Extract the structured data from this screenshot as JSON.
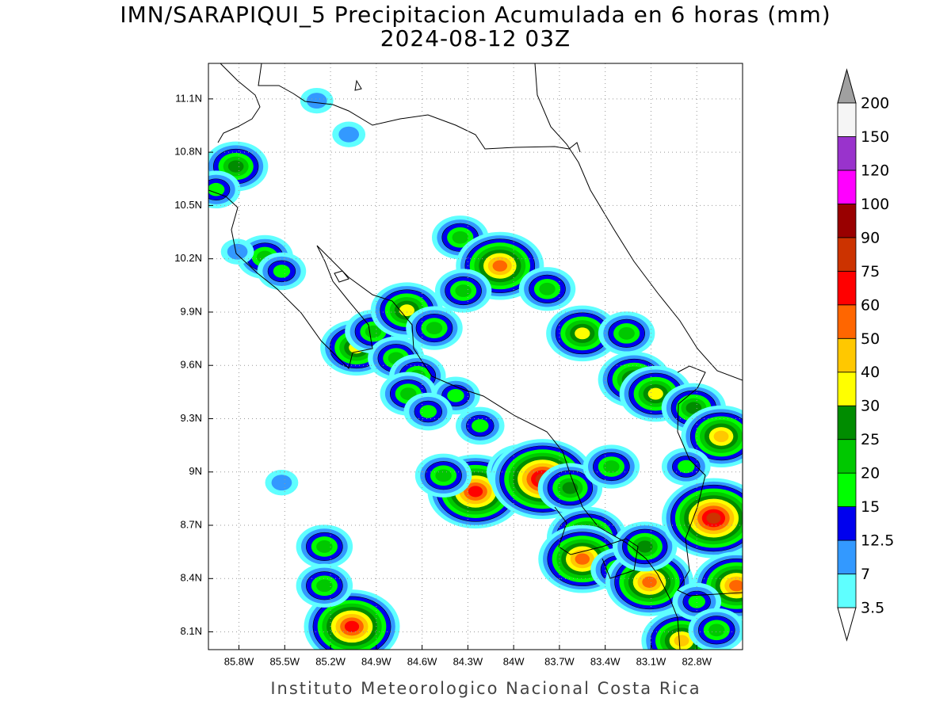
{
  "chart_data": {
    "type": "contour_map",
    "title": "IMN/SARAPIQUI_5 Precipitacion Acumulada en 6 horas (mm)",
    "subtitle": "2024-08-12 03Z",
    "footer": "Instituto Meteorologico Nacional Costa Rica",
    "xlim": [
      -86.0,
      -82.5
    ],
    "ylim": [
      8.0,
      11.3
    ],
    "xticks": [
      {
        "value": -85.8,
        "label": "85.8W"
      },
      {
        "value": -85.5,
        "label": "85.5W"
      },
      {
        "value": -85.2,
        "label": "85.2W"
      },
      {
        "value": -84.9,
        "label": "84.9W"
      },
      {
        "value": -84.6,
        "label": "84.6W"
      },
      {
        "value": -84.3,
        "label": "84.3W"
      },
      {
        "value": -84.0,
        "label": "84W"
      },
      {
        "value": -83.7,
        "label": "83.7W"
      },
      {
        "value": -83.4,
        "label": "83.4W"
      },
      {
        "value": -83.1,
        "label": "83.1W"
      },
      {
        "value": -82.8,
        "label": "82.8W"
      }
    ],
    "yticks": [
      {
        "value": 8.1,
        "label": "8.1N"
      },
      {
        "value": 8.4,
        "label": "8.4N"
      },
      {
        "value": 8.7,
        "label": "8.7N"
      },
      {
        "value": 9.0,
        "label": "9N"
      },
      {
        "value": 9.3,
        "label": "9.3N"
      },
      {
        "value": 9.6,
        "label": "9.6N"
      },
      {
        "value": 9.9,
        "label": "9.9N"
      },
      {
        "value": 10.2,
        "label": "10.2N"
      },
      {
        "value": 10.5,
        "label": "10.5N"
      },
      {
        "value": 10.8,
        "label": "10.8N"
      },
      {
        "value": 11.1,
        "label": "11.1N"
      }
    ],
    "grid": true,
    "colorbar": {
      "levels": [
        3.5,
        7,
        12.5,
        15,
        20,
        25,
        30,
        40,
        50,
        60,
        75,
        90,
        100,
        120,
        150,
        200
      ],
      "colors": [
        "#5fffff",
        "#3399ff",
        "#0000ee",
        "#00ff00",
        "#00c800",
        "#008c00",
        "#ffff00",
        "#ffc800",
        "#ff6600",
        "#ff0000",
        "#cc3300",
        "#990000",
        "#ff00ff",
        "#9933cc",
        "#f5f5f5"
      ],
      "under_color": "#ffffff",
      "over_color": "#a0a0a0"
    },
    "cells": [
      {
        "lon": -85.82,
        "lat": 10.72,
        "value": 25
      },
      {
        "lon": -85.95,
        "lat": 10.59,
        "value": 15
      },
      {
        "lon": -85.29,
        "lat": 11.09,
        "value": 10
      },
      {
        "lon": -85.08,
        "lat": 10.9,
        "value": 7
      },
      {
        "lon": -85.63,
        "lat": 10.21,
        "value": 20
      },
      {
        "lon": -85.52,
        "lat": 10.13,
        "value": 15
      },
      {
        "lon": -85.81,
        "lat": 10.24,
        "value": 7
      },
      {
        "lon": -85.03,
        "lat": 9.7,
        "value": 35
      },
      {
        "lon": -84.92,
        "lat": 9.79,
        "value": 20
      },
      {
        "lon": -84.7,
        "lat": 9.91,
        "value": 35
      },
      {
        "lon": -84.77,
        "lat": 9.64,
        "value": 20
      },
      {
        "lon": -84.63,
        "lat": 9.54,
        "value": 20
      },
      {
        "lon": -84.69,
        "lat": 9.44,
        "value": 20
      },
      {
        "lon": -84.52,
        "lat": 9.81,
        "value": 20
      },
      {
        "lon": -84.38,
        "lat": 9.43,
        "value": 15
      },
      {
        "lon": -84.56,
        "lat": 9.34,
        "value": 15
      },
      {
        "lon": -84.22,
        "lat": 9.26,
        "value": 15
      },
      {
        "lon": -84.35,
        "lat": 10.32,
        "value": 20
      },
      {
        "lon": -84.09,
        "lat": 10.16,
        "value": 55
      },
      {
        "lon": -84.33,
        "lat": 10.02,
        "value": 20
      },
      {
        "lon": -83.78,
        "lat": 10.03,
        "value": 20
      },
      {
        "lon": -83.55,
        "lat": 9.78,
        "value": 35
      },
      {
        "lon": -83.26,
        "lat": 9.78,
        "value": 20
      },
      {
        "lon": -83.21,
        "lat": 9.52,
        "value": 30
      },
      {
        "lon": -83.07,
        "lat": 9.44,
        "value": 30
      },
      {
        "lon": -84.25,
        "lat": 8.89,
        "value": 65
      },
      {
        "lon": -84.46,
        "lat": 8.98,
        "value": 20
      },
      {
        "lon": -83.94,
        "lat": 9.0,
        "value": 35
      },
      {
        "lon": -83.81,
        "lat": 8.96,
        "value": 80
      },
      {
        "lon": -83.63,
        "lat": 8.91,
        "value": 25
      },
      {
        "lon": -83.52,
        "lat": 8.63,
        "value": 40
      },
      {
        "lon": -83.55,
        "lat": 8.51,
        "value": 50
      },
      {
        "lon": -83.36,
        "lat": 9.03,
        "value": 20
      },
      {
        "lon": -83.31,
        "lat": 8.45,
        "value": 20
      },
      {
        "lon": -83.11,
        "lat": 8.38,
        "value": 55
      },
      {
        "lon": -83.14,
        "lat": 8.58,
        "value": 25
      },
      {
        "lon": -82.82,
        "lat": 9.36,
        "value": 25
      },
      {
        "lon": -82.64,
        "lat": 9.2,
        "value": 45
      },
      {
        "lon": -82.69,
        "lat": 8.74,
        "value": 75
      },
      {
        "lon": -82.54,
        "lat": 8.36,
        "value": 50
      },
      {
        "lon": -82.9,
        "lat": 8.05,
        "value": 45
      },
      {
        "lon": -85.06,
        "lat": 8.13,
        "value": 65
      },
      {
        "lon": -85.24,
        "lat": 8.58,
        "value": 20
      },
      {
        "lon": -85.52,
        "lat": 8.94,
        "value": 7
      },
      {
        "lon": -85.24,
        "lat": 8.36,
        "value": 20
      },
      {
        "lon": -82.87,
        "lat": 9.03,
        "value": 15
      },
      {
        "lon": -82.8,
        "lat": 8.27,
        "value": 15
      },
      {
        "lon": -82.67,
        "lat": 8.11,
        "value": 20
      }
    ]
  }
}
